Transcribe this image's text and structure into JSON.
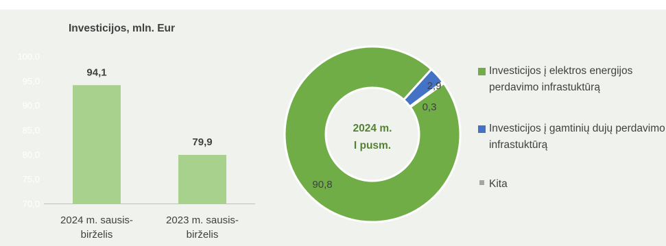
{
  "colors": {
    "panel_bg": "#f0f3ed",
    "bar_fill": "#a9d18e",
    "donut_green": "#70ad47",
    "donut_blue": "#4472c4",
    "donut_gray": "#a5a5a5",
    "axis_tick": "#ffffff",
    "text": "#404040",
    "donut_center_text": "#548235"
  },
  "chart_data": [
    {
      "type": "bar",
      "title": "Investicijos, mln. Eur",
      "categories": [
        [
          "2024 m. sausis-",
          "birželis"
        ],
        [
          "2023 m. sausis-",
          "birželis"
        ]
      ],
      "values": [
        94.1,
        79.9
      ],
      "value_labels": [
        "94,1",
        "79,9"
      ],
      "ylim": [
        70,
        100
      ],
      "yticks": [
        70,
        75,
        80,
        85,
        90,
        95,
        100
      ],
      "ytick_labels": [
        "70,0",
        "75,0",
        "80,0",
        "85,0",
        "90,0",
        "95,0",
        "100,0"
      ],
      "grid": false
    },
    {
      "type": "pie",
      "subtype": "donut",
      "center_label": [
        "2024 m.",
        "I pusm."
      ],
      "legend_position": "right",
      "slices": [
        {
          "name": "Investicijos į elektros energijos perdavimo infrastuktūrą",
          "value": 90.8,
          "label": "90,8",
          "color": "#70ad47"
        },
        {
          "name": "Investicijos į gamtinių dujų perdavimo infrastuktūrą",
          "value": 2.9,
          "label": "2,9",
          "color": "#4472c4"
        },
        {
          "name": "Kita",
          "value": 0.3,
          "label": "0,3",
          "color": "#a5a5a5"
        }
      ]
    }
  ]
}
